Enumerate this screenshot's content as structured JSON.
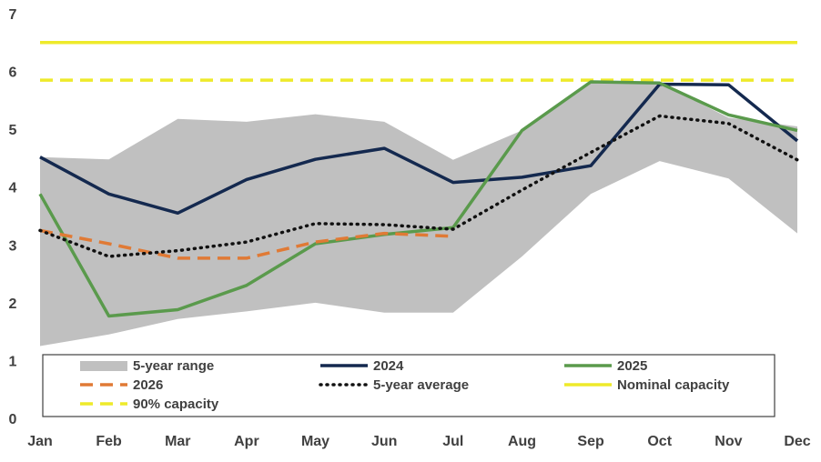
{
  "chart_data": {
    "type": "line",
    "categories": [
      "Jan",
      "Feb",
      "Mar",
      "Apr",
      "May",
      "Jun",
      "Jul",
      "Aug",
      "Sep",
      "Oct",
      "Nov",
      "Dec"
    ],
    "ylim": [
      0,
      7
    ],
    "yticks": [
      "0",
      "1",
      "2",
      "3",
      "4",
      "5",
      "6",
      "7"
    ],
    "grid": false,
    "legend_position": "bottom",
    "range": {
      "name": "5-year range",
      "color": "#c0c0c0",
      "low": [
        1.25,
        1.45,
        1.72,
        1.85,
        2.0,
        1.83,
        1.83,
        2.8,
        3.88,
        4.45,
        4.15,
        3.2
      ],
      "high": [
        4.52,
        4.48,
        5.18,
        5.13,
        5.26,
        5.13,
        4.47,
        4.98,
        5.82,
        5.8,
        5.2,
        5.05
      ]
    },
    "series": [
      {
        "name": "2024",
        "color": "#14294f",
        "style": "solid",
        "values": [
          4.52,
          3.88,
          3.55,
          4.13,
          4.48,
          4.67,
          4.08,
          4.17,
          4.37,
          5.78,
          5.77,
          4.8
        ]
      },
      {
        "name": "2025",
        "color": "#5a9a4c",
        "style": "solid",
        "values": [
          3.88,
          1.77,
          1.88,
          2.3,
          3.02,
          3.18,
          3.3,
          4.98,
          5.82,
          5.8,
          5.25,
          4.98
        ]
      },
      {
        "name": "2026",
        "color": "#e07a35",
        "style": "dashed",
        "values": [
          3.25,
          3.02,
          2.77,
          2.77,
          3.05,
          3.2,
          3.15,
          null,
          null,
          null,
          null,
          null
        ]
      },
      {
        "name": "5-year average",
        "color": "#111111",
        "style": "dotted",
        "values": [
          3.25,
          2.8,
          2.9,
          3.05,
          3.37,
          3.35,
          3.27,
          3.95,
          4.6,
          5.23,
          5.1,
          4.47
        ]
      },
      {
        "name": "Nominal capacity",
        "color": "#eeea2a",
        "style": "solid",
        "values": [
          6.5,
          6.5,
          6.5,
          6.5,
          6.5,
          6.5,
          6.5,
          6.5,
          6.5,
          6.5,
          6.5,
          6.5
        ]
      },
      {
        "name": "90% capacity",
        "color": "#eeea2a",
        "style": "dashed",
        "values": [
          5.85,
          5.85,
          5.85,
          5.85,
          5.85,
          5.85,
          5.85,
          5.85,
          5.85,
          5.85,
          5.85,
          5.85
        ]
      }
    ]
  }
}
